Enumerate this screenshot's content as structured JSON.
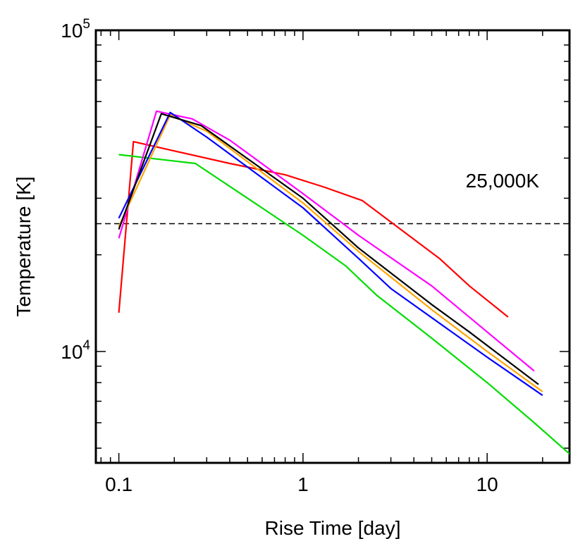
{
  "chart_data": {
    "type": "line",
    "title": "",
    "xlabel": "Rise Time [day]",
    "ylabel": "Temperature [K]",
    "x_scale": "log",
    "y_scale": "log",
    "xlim": [
      0.075,
      28
    ],
    "ylim": [
      4500,
      100000
    ],
    "x_ticks": [
      {
        "value": 0.1,
        "label": "0.1"
      },
      {
        "value": 1,
        "label": "1"
      },
      {
        "value": 10,
        "label": "10"
      }
    ],
    "y_ticks": [
      {
        "value": 10000,
        "base": "10",
        "exp": "4"
      },
      {
        "value": 100000,
        "base": "10",
        "exp": "5"
      }
    ],
    "grid": false,
    "legend": "none",
    "reference_line": {
      "y": 25000,
      "style": "dashed",
      "color": "#000000",
      "label": "25,000K"
    },
    "series": [
      {
        "color": "#ff0000",
        "points": [
          [
            0.1,
            13200
          ],
          [
            0.12,
            45000
          ],
          [
            0.4,
            38500
          ],
          [
            0.8,
            35500
          ],
          [
            1.3,
            32500
          ],
          [
            2.1,
            29500
          ],
          [
            5.5,
            19500
          ],
          [
            8,
            16000
          ],
          [
            13,
            12800
          ]
        ]
      },
      {
        "color": "#00dd00",
        "points": [
          [
            0.1,
            41000
          ],
          [
            0.26,
            38500
          ],
          [
            0.5,
            30000
          ],
          [
            1.0,
            23000
          ],
          [
            1.7,
            18500
          ],
          [
            2.5,
            15000
          ],
          [
            5,
            11000
          ],
          [
            10,
            8000
          ],
          [
            18,
            6000
          ],
          [
            28,
            4800
          ]
        ]
      },
      {
        "color": "#ff00ff",
        "points": [
          [
            0.1,
            22500
          ],
          [
            0.16,
            56000
          ],
          [
            0.25,
            53000
          ],
          [
            0.4,
            45500
          ],
          [
            1.0,
            31000
          ],
          [
            2,
            23000
          ],
          [
            5,
            16000
          ],
          [
            10,
            11500
          ],
          [
            18,
            8700
          ]
        ]
      },
      {
        "color": "#ffa500",
        "points": [
          [
            0.1,
            24500
          ],
          [
            0.19,
            54500
          ],
          [
            0.3,
            48500
          ],
          [
            1.0,
            29000
          ],
          [
            2,
            20500
          ],
          [
            5,
            13500
          ],
          [
            10,
            10000
          ],
          [
            20,
            7500
          ]
        ]
      },
      {
        "color": "#0000ff",
        "points": [
          [
            0.1,
            26000
          ],
          [
            0.19,
            55500
          ],
          [
            0.3,
            46500
          ],
          [
            1.0,
            28000
          ],
          [
            2,
            19500
          ],
          [
            3,
            15700
          ],
          [
            10,
            9600
          ],
          [
            20,
            7300
          ]
        ]
      },
      {
        "color": "#000000",
        "points": [
          [
            0.1,
            24000
          ],
          [
            0.17,
            55000
          ],
          [
            0.28,
            50500
          ],
          [
            1.0,
            30000
          ],
          [
            2,
            21000
          ],
          [
            5,
            14000
          ],
          [
            8,
            11500
          ],
          [
            19,
            7900
          ]
        ]
      }
    ]
  }
}
